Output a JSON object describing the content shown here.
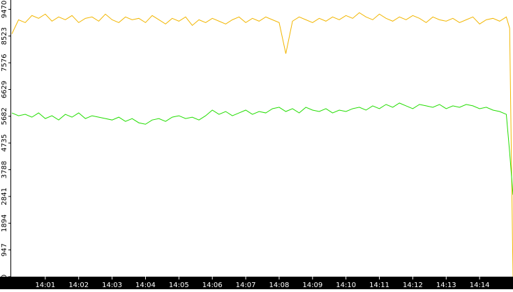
{
  "chart_data": {
    "type": "line",
    "x": [
      0,
      0.2,
      0.4,
      0.6,
      0.8,
      1,
      1.2,
      1.4,
      1.6,
      1.8,
      2,
      2.2,
      2.4,
      2.6,
      2.8,
      3,
      3.2,
      3.4,
      3.6,
      3.8,
      4,
      4.2,
      4.4,
      4.6,
      4.8,
      5,
      5.2,
      5.4,
      5.6,
      5.8,
      6,
      6.2,
      6.4,
      6.6,
      6.8,
      7,
      7.2,
      7.4,
      7.6,
      7.8,
      8,
      8.2,
      8.4,
      8.6,
      8.8,
      9,
      9.2,
      9.4,
      9.6,
      9.8,
      10,
      10.2,
      10.4,
      10.6,
      10.8,
      11,
      11.2,
      11.4,
      11.6,
      11.8,
      12,
      12.2,
      12.4,
      12.6,
      12.8,
      13,
      13.2,
      13.4,
      13.6,
      13.8,
      14,
      14.2,
      14.4,
      14.6,
      14.8,
      14.9,
      15
    ],
    "series": [
      {
        "color": "#f2b600",
        "values": [
          8600,
          9100,
          9000,
          9250,
          9150,
          9300,
          9050,
          9200,
          9100,
          9250,
          9000,
          9150,
          9200,
          9050,
          9300,
          9100,
          9000,
          9200,
          9100,
          9150,
          9000,
          9250,
          9100,
          8950,
          9150,
          9050,
          9200,
          8900,
          9100,
          9000,
          9150,
          9050,
          8950,
          9100,
          9200,
          9000,
          9150,
          9050,
          9200,
          9100,
          9000,
          7900,
          9050,
          9200,
          9100,
          9000,
          9150,
          9050,
          9200,
          9100,
          9250,
          9150,
          9350,
          9200,
          9100,
          9300,
          9150,
          9050,
          9200,
          9100,
          9250,
          9150,
          9000,
          9200,
          9100,
          9050,
          9150,
          9000,
          9100,
          9200,
          8950,
          9100,
          9150,
          9050,
          9200,
          8800,
          0
        ]
      },
      {
        "color": "#22dd00",
        "values": [
          5800,
          5700,
          5750,
          5650,
          5800,
          5600,
          5700,
          5550,
          5750,
          5650,
          5800,
          5600,
          5700,
          5650,
          5600,
          5550,
          5650,
          5500,
          5600,
          5450,
          5400,
          5550,
          5600,
          5500,
          5650,
          5700,
          5600,
          5650,
          5550,
          5700,
          5900,
          5750,
          5850,
          5700,
          5800,
          5900,
          5750,
          5850,
          5800,
          5950,
          6000,
          5850,
          5950,
          5800,
          6000,
          5900,
          5850,
          5950,
          5800,
          5900,
          5850,
          5950,
          6000,
          5900,
          6050,
          5950,
          6100,
          6000,
          6150,
          6050,
          5950,
          6100,
          6050,
          6000,
          6100,
          5950,
          6050,
          6000,
          6100,
          6050,
          5950,
          6000,
          5900,
          5850,
          5750,
          4400,
          2900
        ]
      }
    ],
    "xlim": [
      0,
      15
    ],
    "xticks": [
      {
        "value": 1,
        "label": "14:01"
      },
      {
        "value": 2,
        "label": "14:02"
      },
      {
        "value": 3,
        "label": "14:03"
      },
      {
        "value": 4,
        "label": "14:04"
      },
      {
        "value": 5,
        "label": "14:05"
      },
      {
        "value": 6,
        "label": "14:06"
      },
      {
        "value": 7,
        "label": "14:07"
      },
      {
        "value": 8,
        "label": "14:08"
      },
      {
        "value": 9,
        "label": "14:09"
      },
      {
        "value": 10,
        "label": "14:10"
      },
      {
        "value": 11,
        "label": "14:11"
      },
      {
        "value": 12,
        "label": "14:12"
      },
      {
        "value": 13,
        "label": "14:13"
      },
      {
        "value": 14,
        "label": "14:14"
      }
    ],
    "ylim": [
      0,
      9800
    ],
    "yticks": [
      0,
      947,
      1894,
      2841,
      3788,
      4735,
      5682,
      6629,
      7576,
      8523,
      9470
    ]
  }
}
